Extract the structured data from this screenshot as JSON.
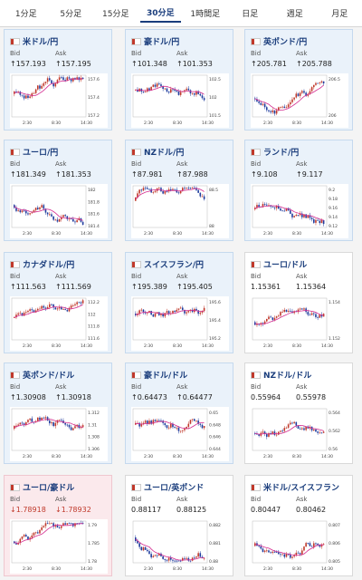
{
  "tabs": [
    "1分足",
    "5分足",
    "15分足",
    "30分足",
    "1時間足",
    "日足",
    "週足",
    "月足"
  ],
  "active_tab": 3,
  "bid_label": "Bid",
  "ask_label": "Ask",
  "cards": [
    {
      "title": "米ドル/円",
      "bid": "↑157.193",
      "ask": "↑157.195",
      "kind": "up",
      "axis": [
        "157.6",
        "157.4",
        "157.2"
      ],
      "xticks": [
        "2:30",
        "8:30",
        "14:30"
      ]
    },
    {
      "title": "豪ドル/円",
      "bid": "↑101.348",
      "ask": "↑101.353",
      "kind": "up",
      "axis": [
        "102.5",
        "102",
        "101.5"
      ],
      "xticks": [
        "2:30",
        "8:30",
        "14:30"
      ]
    },
    {
      "title": "英ポンド/円",
      "bid": "↑205.781",
      "ask": "↑205.788",
      "kind": "up",
      "axis": [
        "206.5",
        "206"
      ],
      "xticks": [
        "2:30",
        "8:30",
        "14:30"
      ]
    },
    {
      "title": "ユーロ/円",
      "bid": "↑181.349",
      "ask": "↑181.353",
      "kind": "up",
      "axis": [
        "182",
        "181.8",
        "181.6",
        "181.4"
      ],
      "xticks": [
        "2:30",
        "8:30",
        "14:30"
      ]
    },
    {
      "title": "NZドル/円",
      "bid": "↑87.981",
      "ask": "↑87.988",
      "kind": "up",
      "axis": [
        "88.5",
        "88"
      ],
      "xticks": [
        "2:30",
        "8:30",
        "14:30"
      ]
    },
    {
      "title": "ランド/円",
      "bid": "↑9.108",
      "ask": "↑9.117",
      "kind": "up",
      "axis": [
        "9.2",
        "9.18",
        "9.16",
        "9.14",
        "9.12"
      ],
      "xticks": [
        "2:30",
        "8:30",
        "14:30"
      ]
    },
    {
      "title": "カナダドル/円",
      "bid": "↑111.563",
      "ask": "↑111.569",
      "kind": "up",
      "axis": [
        "112.2",
        "112",
        "111.8",
        "111.6"
      ],
      "xticks": [
        "2:30",
        "8:30",
        "14:30"
      ]
    },
    {
      "title": "スイスフラン/円",
      "bid": "↑195.389",
      "ask": "↑195.405",
      "kind": "up",
      "axis": [
        "195.6",
        "195.4",
        "195.2"
      ],
      "xticks": [
        "2:30",
        "8:30",
        "14:30"
      ]
    },
    {
      "title": "ユーロ/ドル",
      "bid": "1.15361",
      "ask": "1.15364",
      "kind": "neutral",
      "axis": [
        "1.154",
        "1.152"
      ],
      "xticks": [
        "2:30",
        "8:30",
        "14:30"
      ]
    },
    {
      "title": "英ポンド/ドル",
      "bid": "↑1.30908",
      "ask": "↑1.30918",
      "kind": "up",
      "axis": [
        "1.312",
        "1.31",
        "1.308",
        "1.306"
      ],
      "xticks": [
        "2:30",
        "8:30",
        "14:30"
      ]
    },
    {
      "title": "豪ドル/ドル",
      "bid": "↑0.64473",
      "ask": "↑0.64477",
      "kind": "up",
      "axis": [
        "0.65",
        "0.648",
        "0.646",
        "0.644"
      ],
      "xticks": [
        "2:30",
        "8:30",
        "14:30"
      ]
    },
    {
      "title": "NZドル/ドル",
      "bid": "0.55964",
      "ask": "0.55978",
      "kind": "neutral",
      "axis": [
        "0.564",
        "0.562",
        "0.56"
      ],
      "xticks": [
        "2:30",
        "8:30",
        "14:30"
      ]
    },
    {
      "title": "ユーロ/豪ドル",
      "bid": "↓1.78918",
      "ask": "↓1.78932",
      "kind": "down",
      "axis": [
        "1.79",
        "1.785",
        "1.78"
      ],
      "xticks": [
        "2:30",
        "8:30",
        "14:30"
      ]
    },
    {
      "title": "ユーロ/英ポンド",
      "bid": "0.88117",
      "ask": "0.88125",
      "kind": "neutral",
      "axis": [
        "0.882",
        "0.881",
        "0.88"
      ],
      "xticks": [
        "2:30",
        "8:30",
        "14:30"
      ]
    },
    {
      "title": "米ドル/スイスフラン",
      "bid": "0.80447",
      "ask": "0.80462",
      "kind": "neutral",
      "axis": [
        "0.807",
        "0.806",
        "0.805"
      ],
      "xticks": [
        "2:30",
        "8:30",
        "14:30"
      ]
    }
  ],
  "colors": {
    "accent": "#1a3d7c",
    "up": "#1a3d7c",
    "bull": "#c0392b",
    "bear": "#1f3c9e",
    "ma": "#d42b8f"
  }
}
